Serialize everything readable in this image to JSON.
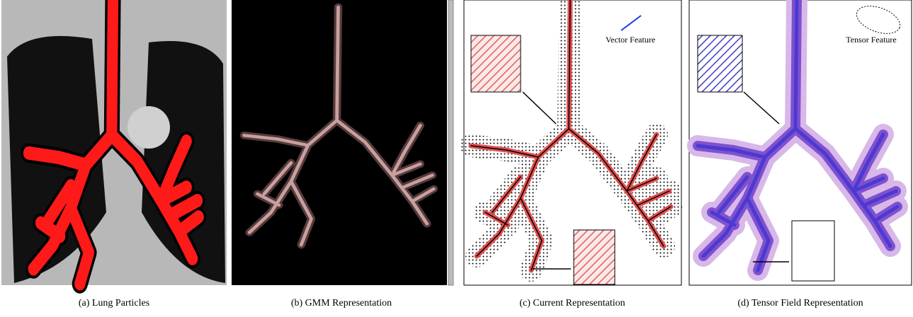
{
  "figure": {
    "panels": [
      {
        "caption": "(a)  Lung Particles"
      },
      {
        "caption": "(b)  GMM Representation"
      },
      {
        "caption": "(c)  Current Representation",
        "annotation": "Vector Feature"
      },
      {
        "caption": "(d)  Tensor Field Representation",
        "annotation": "Tensor Feature"
      }
    ]
  }
}
